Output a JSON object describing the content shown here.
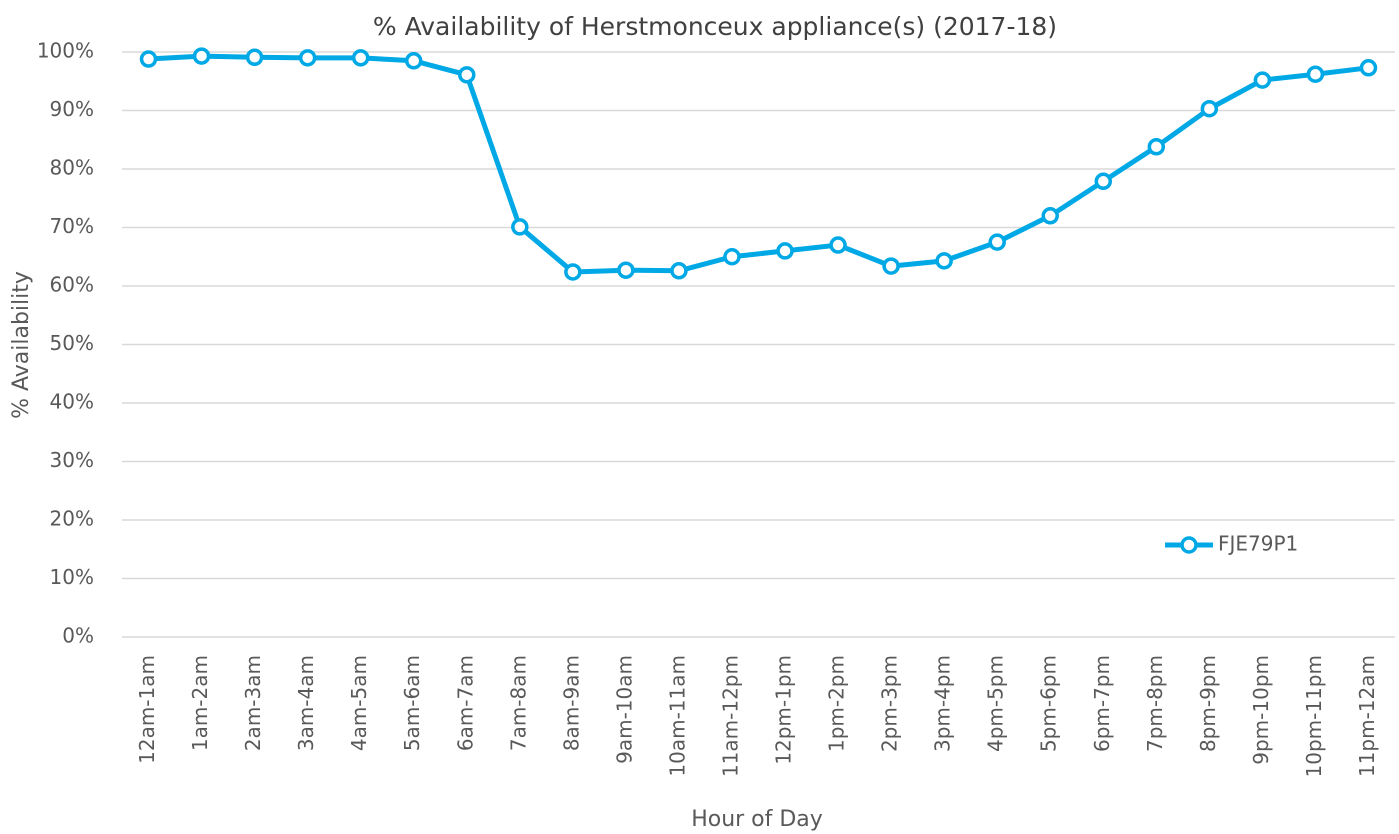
{
  "chart_data": {
    "type": "line",
    "title": "% Availability of Herstmonceux appliance(s) (2017-18)",
    "x_label": "Hour of Day",
    "y_label": "% Availability",
    "categories": [
      "12am-1am",
      "1am-2am",
      "2am-3am",
      "3am-4am",
      "4am-5am",
      "5am-6am",
      "6am-7am",
      "7am-8am",
      "8am-9am",
      "9am-10am",
      "10am-11am",
      "11am-12pm",
      "12pm-1pm",
      "1pm-2pm",
      "2pm-3pm",
      "3pm-4pm",
      "4pm-5pm",
      "5pm-6pm",
      "6pm-7pm",
      "7pm-8pm",
      "8pm-9pm",
      "9pm-10pm",
      "10pm-11pm",
      "11pm-12am"
    ],
    "series": [
      {
        "name": "FJE79P1",
        "color": "#00a9e6",
        "values": [
          98.8,
          99.3,
          99.1,
          99.0,
          99.0,
          98.5,
          96.1,
          70.1,
          62.4,
          62.7,
          62.6,
          65.0,
          66.0,
          67.0,
          63.4,
          64.3,
          67.5,
          72.0,
          77.9,
          83.8,
          90.3,
          95.2,
          96.2,
          97.3
        ]
      }
    ],
    "ylim": [
      0,
      100
    ],
    "yticks": [
      {
        "value": 0,
        "label": "0%"
      },
      {
        "value": 10,
        "label": "10%"
      },
      {
        "value": 20,
        "label": "20%"
      },
      {
        "value": 30,
        "label": "30%"
      },
      {
        "value": 40,
        "label": "40%"
      },
      {
        "value": 50,
        "label": "50%"
      },
      {
        "value": 60,
        "label": "60%"
      },
      {
        "value": 70,
        "label": "70%"
      },
      {
        "value": 80,
        "label": "80%"
      },
      {
        "value": 90,
        "label": "90%"
      },
      {
        "value": 100,
        "label": "100%"
      }
    ],
    "grid": true,
    "legend": "right"
  }
}
